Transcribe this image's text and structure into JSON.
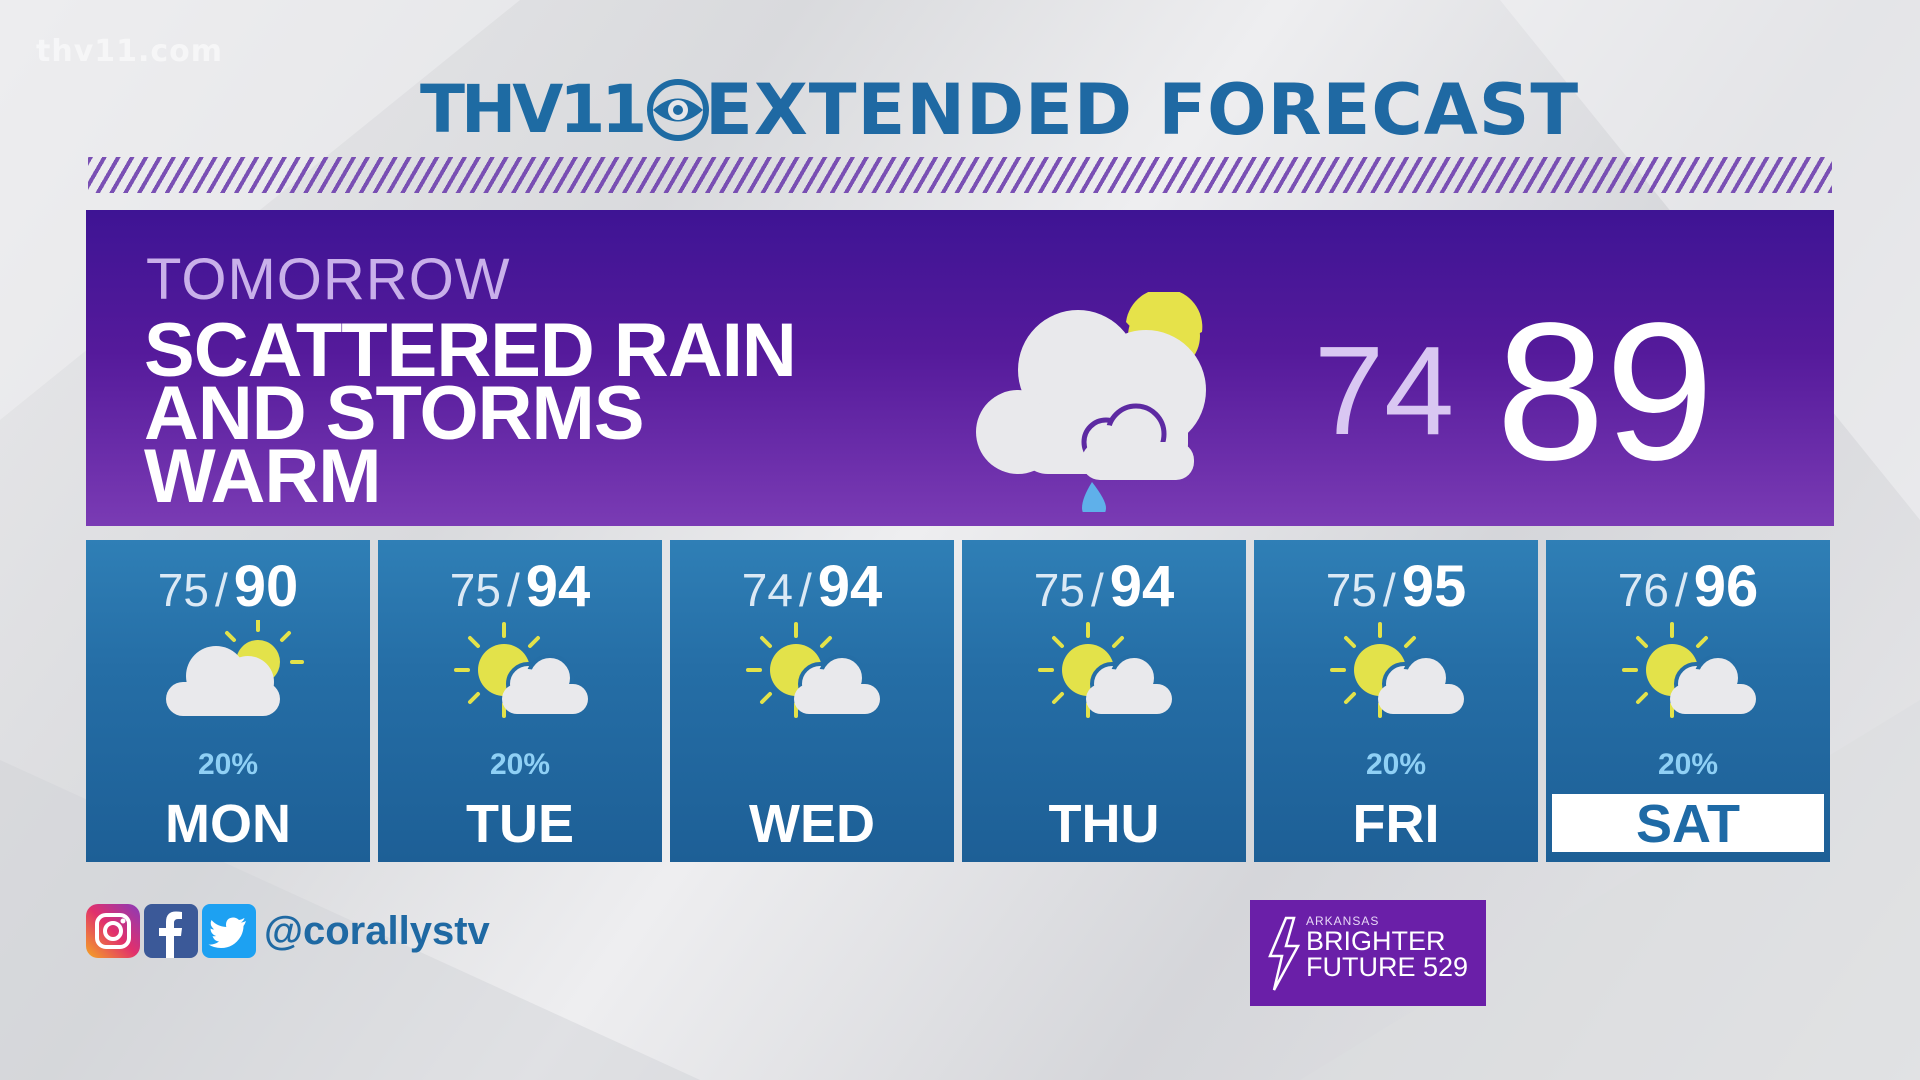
{
  "watermark": "thv11.com",
  "header": {
    "logo_text": "THV11",
    "title": "EXTENDED FORECAST"
  },
  "tomorrow": {
    "label": "TOMORROW",
    "lines": [
      "SCATTERED RAIN",
      "AND STORMS",
      "WARM"
    ],
    "icon": "cloud-sun-rain-icon",
    "low": "74",
    "high": "89"
  },
  "days": [
    {
      "low": "75",
      "sep": "/",
      "high": "90",
      "icon": "cloud-sun-icon",
      "precip": "20%",
      "name": "MON",
      "selected": false
    },
    {
      "low": "75",
      "sep": "/",
      "high": "94",
      "icon": "sun-cloud-icon",
      "precip": "20%",
      "name": "TUE",
      "selected": false
    },
    {
      "low": "74",
      "sep": "/",
      "high": "94",
      "icon": "sun-cloud-icon",
      "precip": "",
      "name": "WED",
      "selected": false
    },
    {
      "low": "75",
      "sep": "/",
      "high": "94",
      "icon": "sun-cloud-icon",
      "precip": "",
      "name": "THU",
      "selected": false
    },
    {
      "low": "75",
      "sep": "/",
      "high": "95",
      "icon": "sun-cloud-icon",
      "precip": "20%",
      "name": "FRI",
      "selected": false
    },
    {
      "low": "76",
      "sep": "/",
      "high": "96",
      "icon": "sun-cloud-icon",
      "precip": "20%",
      "name": "SAT",
      "selected": true
    }
  ],
  "social": {
    "icons": [
      "instagram-icon",
      "facebook-icon",
      "twitter-icon"
    ],
    "handle": "@corallystv"
  },
  "sponsor": {
    "small": "ARKANSAS",
    "line1": "BRIGHTER",
    "line2": "FUTURE 529"
  },
  "colors": {
    "brand_blue": "#1f69a3",
    "panel_purple": "#551a9b",
    "day_blue": "#256ea6",
    "precip_blue": "#8fd0f5",
    "sun_yellow": "#e8e64a"
  }
}
